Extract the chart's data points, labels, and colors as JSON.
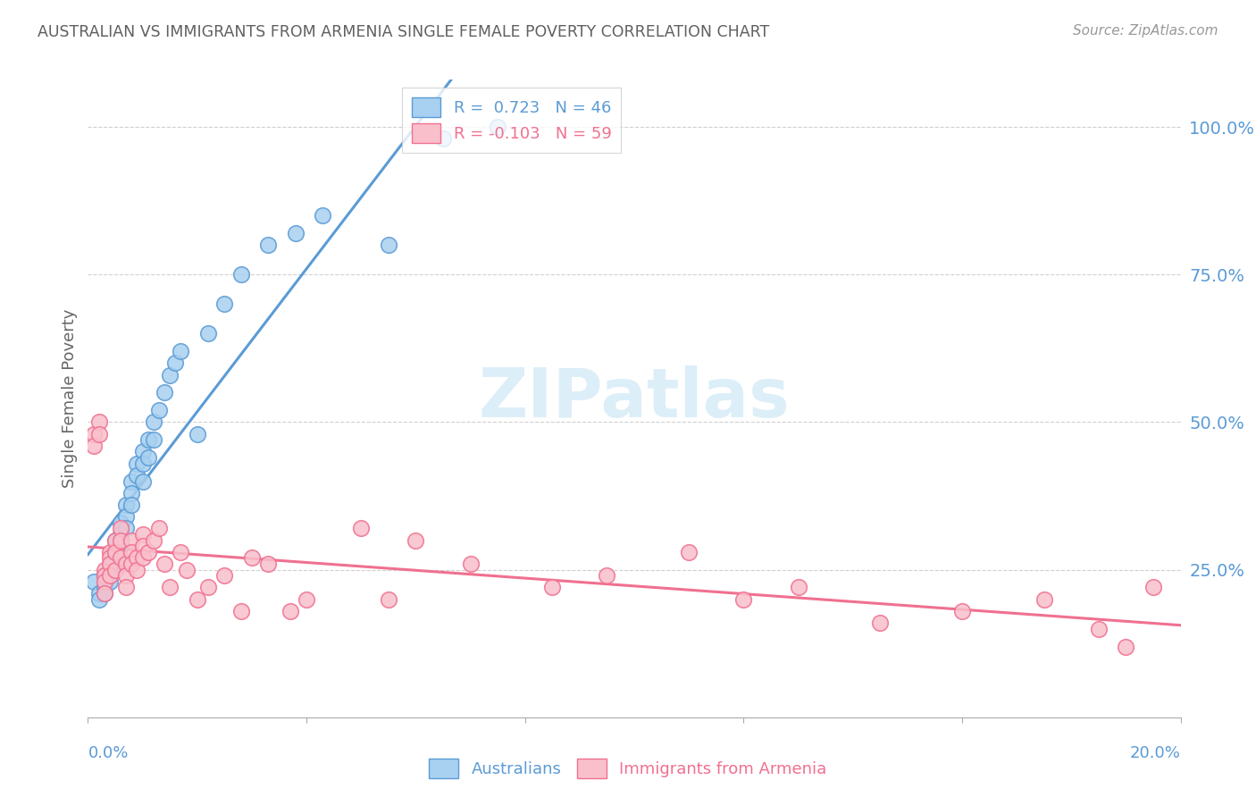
{
  "title": "AUSTRALIAN VS IMMIGRANTS FROM ARMENIA SINGLE FEMALE POVERTY CORRELATION CHART",
  "source": "Source: ZipAtlas.com",
  "ylabel": "Single Female Poverty",
  "right_ytick_vals": [
    1.0,
    0.75,
    0.5,
    0.25
  ],
  "right_ytick_labels": [
    "100.0%",
    "75.0%",
    "50.0%",
    "25.0%"
  ],
  "xlim": [
    0.0,
    0.2
  ],
  "ylim": [
    0.0,
    1.08
  ],
  "blue_fill": "#a8d0f0",
  "blue_edge": "#5b9bd5",
  "pink_fill": "#f9c0cc",
  "pink_edge": "#f07090",
  "blue_line": "#5b9bd5",
  "pink_line": "#f07090",
  "axis_color": "#5b9bd5",
  "grid_color": "#d0d0d0",
  "title_color": "#606060",
  "source_color": "#999999",
  "watermark_color": "#dceef8",
  "legend_r1": "R =  0.723   N = 46",
  "legend_r2": "R = -0.103   N = 59",
  "legend_label1": "Australians",
  "legend_label2": "Immigrants from Armenia",
  "aus_x": [
    0.001,
    0.002,
    0.002,
    0.003,
    0.003,
    0.003,
    0.004,
    0.004,
    0.004,
    0.004,
    0.005,
    0.005,
    0.005,
    0.006,
    0.006,
    0.006,
    0.007,
    0.007,
    0.007,
    0.008,
    0.008,
    0.008,
    0.009,
    0.009,
    0.01,
    0.01,
    0.01,
    0.011,
    0.011,
    0.012,
    0.012,
    0.013,
    0.014,
    0.015,
    0.016,
    0.017,
    0.02,
    0.022,
    0.025,
    0.028,
    0.033,
    0.038,
    0.043,
    0.055,
    0.065,
    0.075
  ],
  "aus_y": [
    0.23,
    0.21,
    0.2,
    0.24,
    0.22,
    0.21,
    0.26,
    0.25,
    0.24,
    0.23,
    0.3,
    0.28,
    0.26,
    0.33,
    0.31,
    0.29,
    0.36,
    0.34,
    0.32,
    0.4,
    0.38,
    0.36,
    0.43,
    0.41,
    0.45,
    0.43,
    0.4,
    0.47,
    0.44,
    0.5,
    0.47,
    0.52,
    0.55,
    0.58,
    0.6,
    0.62,
    0.48,
    0.65,
    0.7,
    0.75,
    0.8,
    0.82,
    0.85,
    0.8,
    0.98,
    1.0
  ],
  "arm_x": [
    0.001,
    0.001,
    0.002,
    0.002,
    0.003,
    0.003,
    0.003,
    0.003,
    0.004,
    0.004,
    0.004,
    0.004,
    0.005,
    0.005,
    0.005,
    0.006,
    0.006,
    0.006,
    0.007,
    0.007,
    0.007,
    0.008,
    0.008,
    0.008,
    0.009,
    0.009,
    0.01,
    0.01,
    0.01,
    0.011,
    0.012,
    0.013,
    0.014,
    0.015,
    0.017,
    0.018,
    0.02,
    0.022,
    0.025,
    0.028,
    0.03,
    0.033,
    0.037,
    0.04,
    0.05,
    0.06,
    0.07,
    0.085,
    0.095,
    0.11,
    0.13,
    0.145,
    0.16,
    0.175,
    0.185,
    0.19,
    0.055,
    0.12,
    0.195
  ],
  "arm_y": [
    0.48,
    0.46,
    0.5,
    0.48,
    0.25,
    0.24,
    0.23,
    0.21,
    0.28,
    0.27,
    0.26,
    0.24,
    0.3,
    0.28,
    0.25,
    0.32,
    0.3,
    0.27,
    0.26,
    0.24,
    0.22,
    0.3,
    0.28,
    0.26,
    0.27,
    0.25,
    0.31,
    0.29,
    0.27,
    0.28,
    0.3,
    0.32,
    0.26,
    0.22,
    0.28,
    0.25,
    0.2,
    0.22,
    0.24,
    0.18,
    0.27,
    0.26,
    0.18,
    0.2,
    0.32,
    0.3,
    0.26,
    0.22,
    0.24,
    0.28,
    0.22,
    0.16,
    0.18,
    0.2,
    0.15,
    0.12,
    0.2,
    0.2,
    0.22
  ]
}
